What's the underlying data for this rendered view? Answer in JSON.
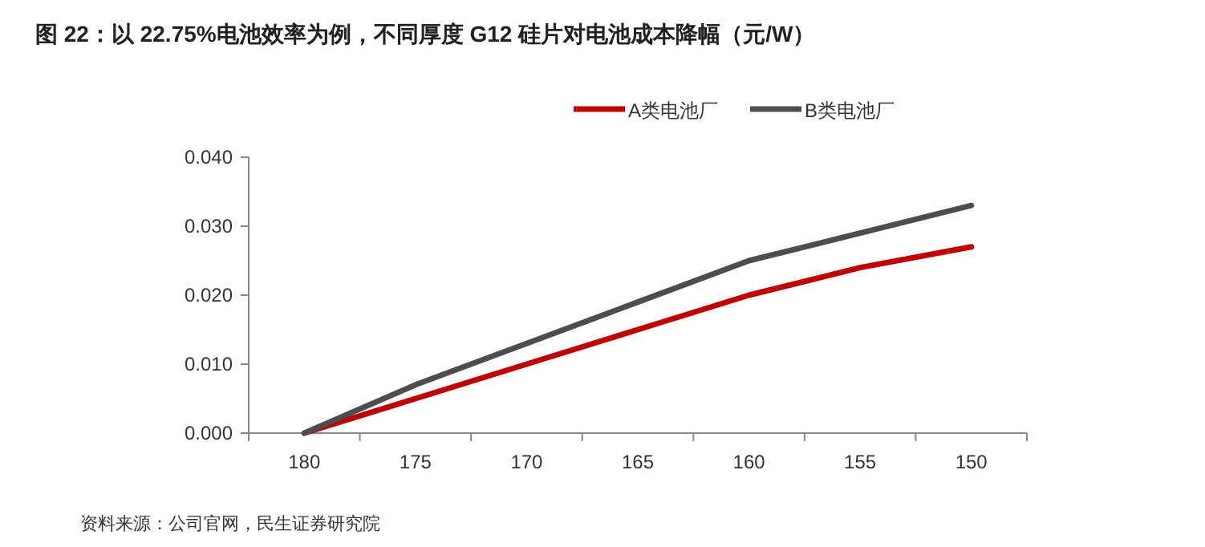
{
  "chart_data": {
    "type": "line",
    "title": "图 22：以 22.75%电池效率为例，不同厚度 G12 硅片对电池成本降幅（元/W）",
    "categories": [
      "180",
      "175",
      "170",
      "165",
      "160",
      "155",
      "150"
    ],
    "series": [
      {
        "name": "A类电池厂",
        "color": "#c00000",
        "values": [
          0,
          0.005,
          0.01,
          0.015,
          0.02,
          0.024,
          0.027
        ]
      },
      {
        "name": "B类电池厂",
        "color": "#4d4d4d",
        "values": [
          0,
          0.007,
          0.013,
          0.019,
          0.025,
          0.029,
          0.033
        ]
      }
    ],
    "ylim": [
      0,
      0.04
    ],
    "yticks": [
      {
        "value": 0,
        "label": "0.000"
      },
      {
        "value": 0.01,
        "label": "0.010"
      },
      {
        "value": 0.02,
        "label": "0.020"
      },
      {
        "value": 0.03,
        "label": "0.030"
      },
      {
        "value": 0.04,
        "label": "0.040"
      }
    ],
    "grid": false,
    "legend": "top",
    "marker": "none",
    "line_style": "solid",
    "annotations": [
      "资料来源：公司官网，民生证券研究院"
    ]
  }
}
